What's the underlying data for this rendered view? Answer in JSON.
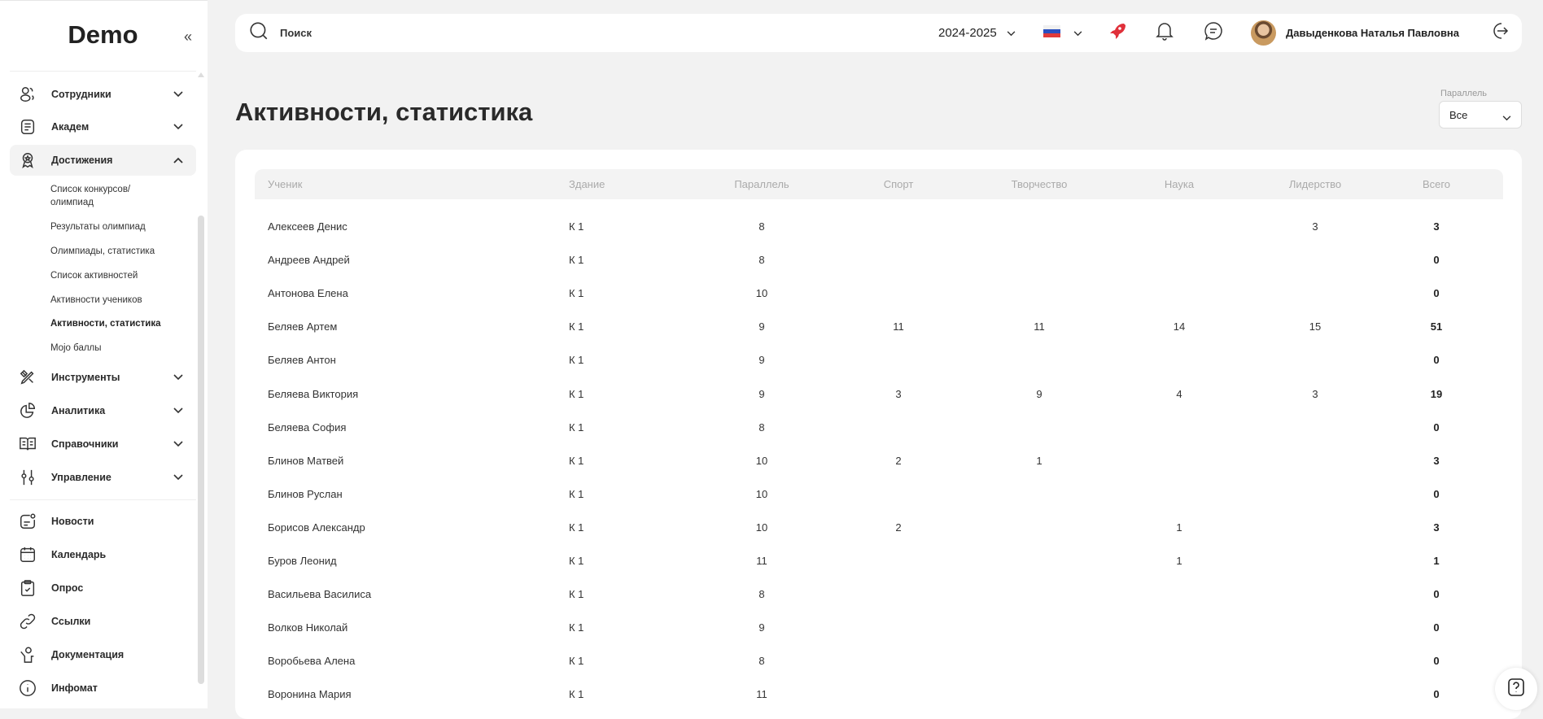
{
  "sidebar": {
    "logo": "Demo",
    "groups": [
      {
        "label": "Сотрудники",
        "icon": "users-icon"
      },
      {
        "label": "Академ",
        "icon": "document-icon"
      },
      {
        "label": "Достижения",
        "icon": "award-icon",
        "expanded": true
      },
      {
        "label": "Инструменты",
        "icon": "tools-icon"
      },
      {
        "label": "Аналитика",
        "icon": "pie-chart-icon"
      },
      {
        "label": "Справочники",
        "icon": "book-icon"
      },
      {
        "label": "Управление",
        "icon": "sliders-icon"
      }
    ],
    "subitems": [
      "Список конкурсов/",
      "олимпиад",
      "Результаты олимпиад",
      "Олимпиады, статистика",
      "Список активностей",
      "Активности учеников",
      "Активности, статистика",
      "Mojo баллы"
    ],
    "links": [
      {
        "label": "Новости",
        "icon": "news-icon"
      },
      {
        "label": "Календарь",
        "icon": "calendar-icon"
      },
      {
        "label": "Опрос",
        "icon": "clipboard-check-icon"
      },
      {
        "label": "Ссылки",
        "icon": "link-icon"
      },
      {
        "label": "Документация",
        "icon": "person-doc-icon"
      },
      {
        "label": "Инфомат",
        "icon": "info-icon"
      }
    ]
  },
  "header": {
    "search_placeholder": "Поиск",
    "year": "2024-2025",
    "language": "ru",
    "user_name": "Давыденкова Наталья Павловна",
    "rocket_color": "#e0303a"
  },
  "page": {
    "title": "Активности, статистика",
    "filter_label": "Параллель",
    "filter_value": "Все"
  },
  "table": {
    "columns": [
      "Ученик",
      "Здание",
      "Параллель",
      "Спорт",
      "Творчество",
      "Наука",
      "Лидерство",
      "Всего"
    ],
    "rows": [
      [
        "Алексеев Денис",
        "К 1",
        "8",
        "",
        "",
        "",
        "3",
        "3"
      ],
      [
        "Андреев Андрей",
        "К 1",
        "8",
        "",
        "",
        "",
        "",
        "0"
      ],
      [
        "Антонова Елена",
        "К 1",
        "10",
        "",
        "",
        "",
        "",
        "0"
      ],
      [
        "Беляев Артем",
        "К 1",
        "9",
        "11",
        "11",
        "14",
        "15",
        "51"
      ],
      [
        "Беляев Антон",
        "К 1",
        "9",
        "",
        "",
        "",
        "",
        "0"
      ],
      [
        "Беляева Виктория",
        "К 1",
        "9",
        "3",
        "9",
        "4",
        "3",
        "19"
      ],
      [
        "Беляева София",
        "К 1",
        "8",
        "",
        "",
        "",
        "",
        "0"
      ],
      [
        "Блинов Матвей",
        "К 1",
        "10",
        "2",
        "1",
        "",
        "",
        "3"
      ],
      [
        "Блинов Руслан",
        "К 1",
        "10",
        "",
        "",
        "",
        "",
        "0"
      ],
      [
        "Борисов Александр",
        "К 1",
        "10",
        "2",
        "",
        "1",
        "",
        "3"
      ],
      [
        "Буров Леонид",
        "К 1",
        "11",
        "",
        "",
        "1",
        "",
        "1"
      ],
      [
        "Васильева Василиса",
        "К 1",
        "8",
        "",
        "",
        "",
        "",
        "0"
      ],
      [
        "Волков Николай",
        "К 1",
        "9",
        "",
        "",
        "",
        "",
        "0"
      ],
      [
        "Воробьева Алена",
        "К 1",
        "8",
        "",
        "",
        "",
        "",
        "0"
      ],
      [
        "Воронина Мария",
        "К 1",
        "11",
        "",
        "",
        "",
        "",
        "0"
      ]
    ]
  }
}
